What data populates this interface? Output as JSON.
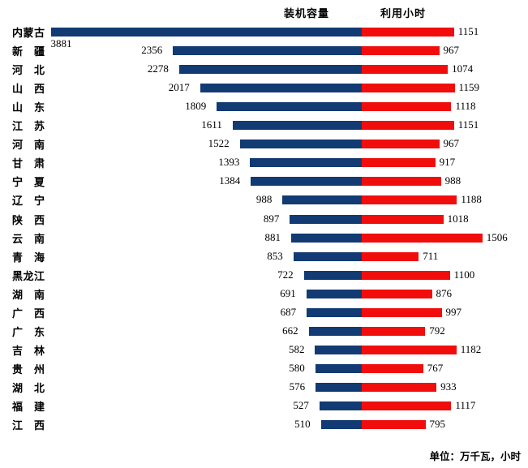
{
  "header": {
    "left_series_label": "装机容量",
    "right_series_label": "利用小时"
  },
  "footer": {
    "unit_note": "单位：万千瓦，小时"
  },
  "colors": {
    "capacity_bar": "#123a73",
    "hours_bar": "#f20d0d",
    "text": "#000000"
  },
  "chart_data": {
    "type": "bar",
    "orientation": "horizontal-diverging",
    "title": "",
    "unit_note": "单位：万千瓦，小时",
    "legend_position": "top",
    "grid": false,
    "series": [
      {
        "name": "装机容量",
        "side": "left",
        "color": "#123a73"
      },
      {
        "name": "利用小时",
        "side": "right",
        "color": "#f20d0d"
      }
    ],
    "categories": [
      "内蒙古",
      "新疆",
      "河北",
      "山西",
      "山东",
      "江苏",
      "河南",
      "甘肃",
      "宁夏",
      "辽宁",
      "陕西",
      "云南",
      "青海",
      "黑龙江",
      "湖南",
      "广西",
      "广东",
      "吉林",
      "贵州",
      "湖北",
      "福建",
      "江西"
    ],
    "capacity_values": [
      3881,
      2356,
      2278,
      2017,
      1809,
      1611,
      1522,
      1393,
      1384,
      988,
      897,
      881,
      853,
      722,
      691,
      687,
      662,
      582,
      580,
      576,
      527,
      510
    ],
    "hours_values": [
      1151,
      967,
      1074,
      1159,
      1118,
      1151,
      967,
      917,
      988,
      1188,
      1018,
      1506,
      711,
      1100,
      876,
      997,
      792,
      1182,
      767,
      933,
      1117,
      795
    ]
  }
}
